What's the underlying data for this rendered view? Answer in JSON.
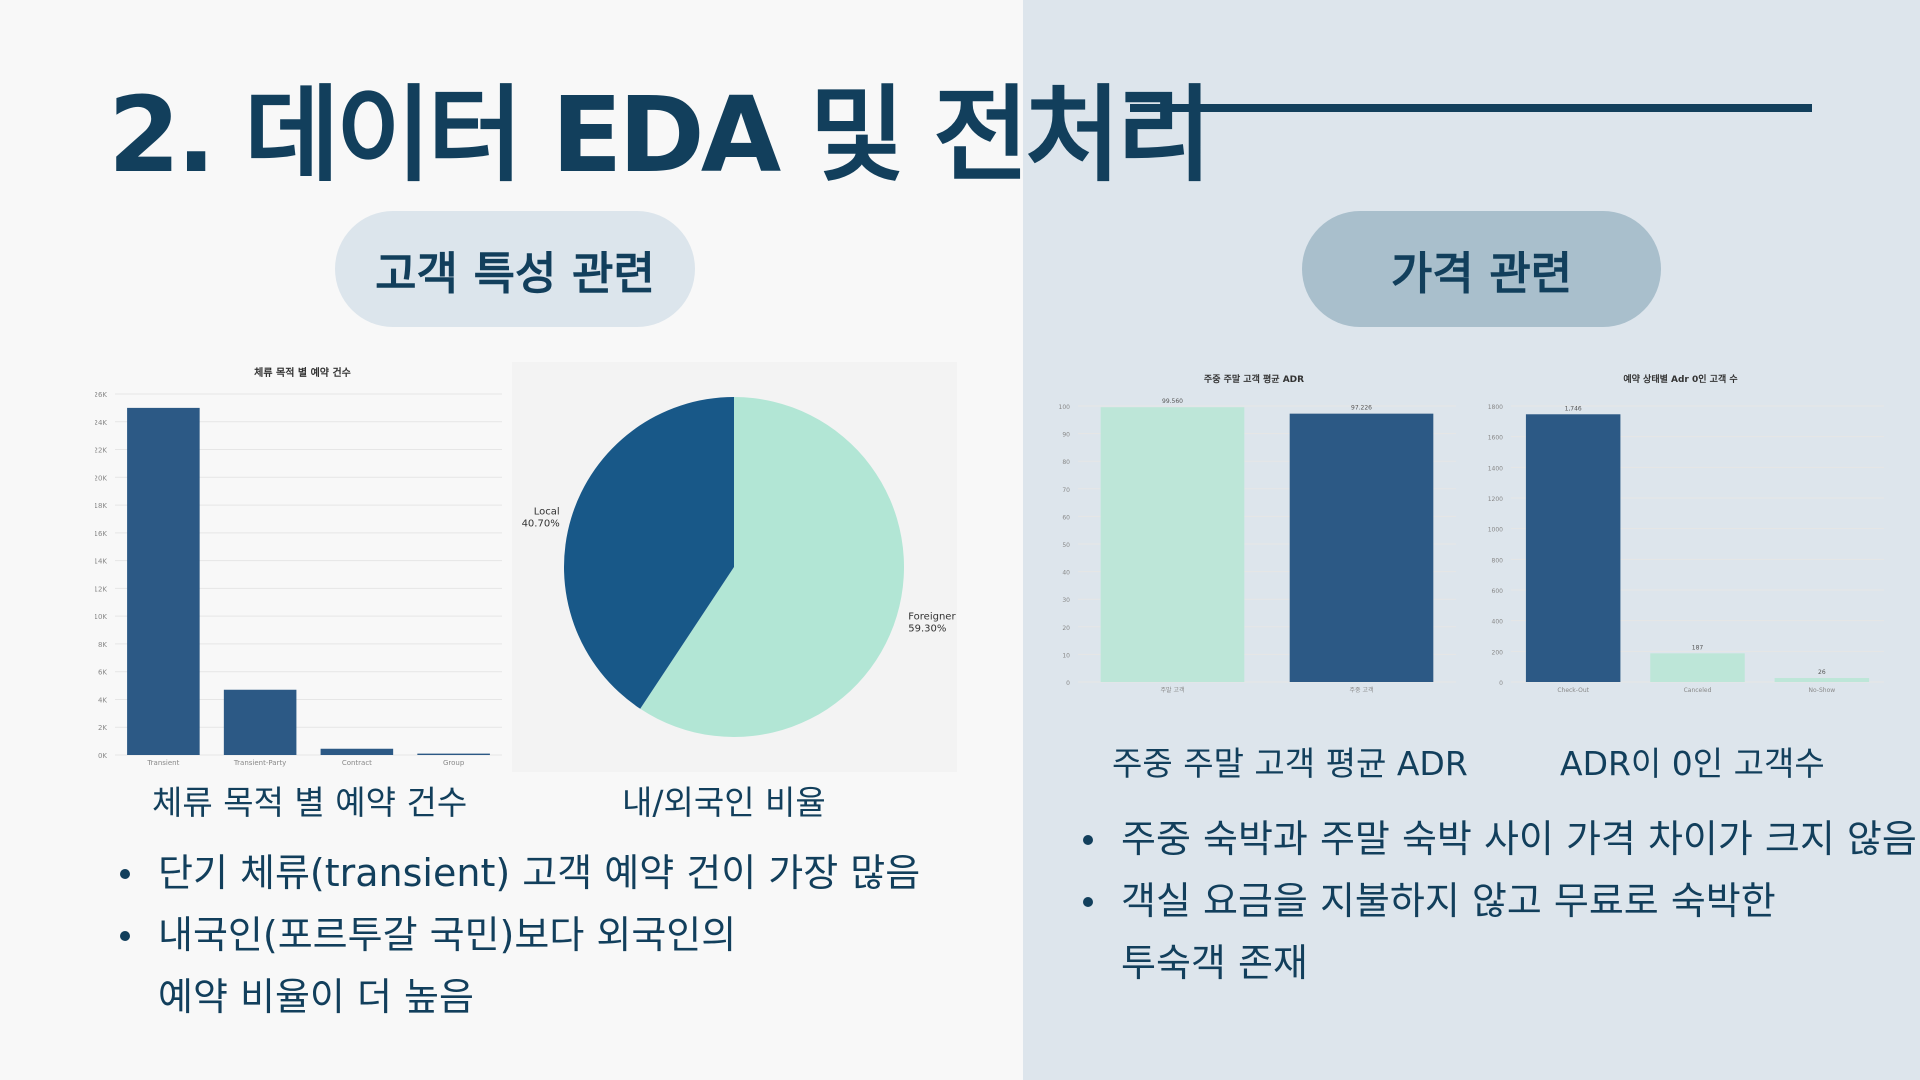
{
  "title": "2. 데이터 EDA 및 전처리",
  "sections": {
    "customer": "고객 특성 관련",
    "price": "가격 관련"
  },
  "captions": {
    "purpose": "체류 목적 별 예약 건수",
    "nationality": "내/외국인 비율",
    "weekday_weekend": "주중 주말 고객 평균 ADR",
    "adr_zero": "ADR이 0인 고객수"
  },
  "left_bullets": [
    {
      "line1": "단기 체류(transient) 고객 예약 건이 가장 많음",
      "line2": ""
    },
    {
      "line1": "내국인(포르투갈 국민)보다 외국인의",
      "line2": "예약 비율이 더 높음"
    }
  ],
  "right_bullets": [
    {
      "line1": "주중 숙박과 주말 숙박 사이 가격 차이가 크지 않음",
      "line2": ""
    },
    {
      "line1": "객실 요금을 지불하지 않고 무료로 숙박한",
      "line2": "투숙객 존재"
    }
  ],
  "chart_data": [
    {
      "id": "purpose",
      "type": "bar",
      "title": "체류 목적 별 예약 건수",
      "categories": [
        "Transient",
        "Transient-Party",
        "Contract",
        "Group"
      ],
      "values": [
        25000,
        4700,
        450,
        100
      ],
      "ylim": [
        0,
        26000
      ],
      "yticks": [
        "0K",
        "2K",
        "4K",
        "6K",
        "8K",
        "10K",
        "12K",
        "14K",
        "16K",
        "18K",
        "20K",
        "22K",
        "24K",
        "26K"
      ],
      "color": "#2c5985",
      "grid": true
    },
    {
      "id": "nationality",
      "type": "pie",
      "slices": [
        {
          "label": "Foreigner",
          "pct_label": "59.30%",
          "value": 59.3,
          "color": "#b2e6d5"
        },
        {
          "label": "Local",
          "pct_label": "40.70%",
          "value": 40.7,
          "color": "#185888"
        }
      ]
    },
    {
      "id": "weekday_weekend",
      "type": "bar",
      "title": "주중 주말 고객 평균 ADR",
      "categories": [
        "주말 고객",
        "주중 고객"
      ],
      "values": [
        99.56,
        97.226
      ],
      "value_labels": [
        "99.560",
        "97.226"
      ],
      "colors": [
        "#bde6d8",
        "#2c5985"
      ],
      "ylim": [
        0,
        100
      ],
      "yticks": [
        "0",
        "10",
        "20",
        "30",
        "40",
        "50",
        "60",
        "70",
        "80",
        "90",
        "100"
      ],
      "grid": true
    },
    {
      "id": "adr_zero",
      "type": "bar",
      "title": "예약 상태별 Adr 0인 고객 수",
      "categories": [
        "Check-Out",
        "Canceled",
        "No-Show"
      ],
      "values": [
        1746,
        187,
        26
      ],
      "value_labels": [
        "1,746",
        "187",
        "26"
      ],
      "colors": [
        "#2c5985",
        "#bde6d8",
        "#bde6d8"
      ],
      "ylim": [
        0,
        1800
      ],
      "yticks": [
        "0",
        "200",
        "400",
        "600",
        "800",
        "1000",
        "1200",
        "1400",
        "1600",
        "1800"
      ],
      "grid": true
    }
  ]
}
